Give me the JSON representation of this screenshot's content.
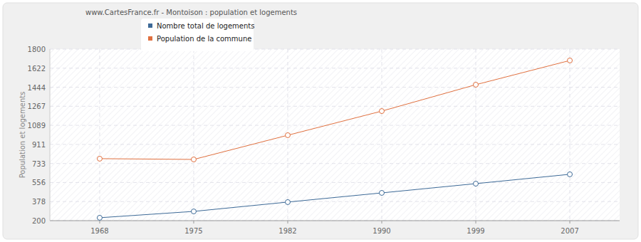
{
  "chart_data": {
    "type": "line",
    "title": "www.CartesFrance.fr - Montoison : population et logements",
    "y_label": "Population et logements",
    "categories": [
      "1968",
      "1975",
      "1982",
      "1990",
      "1999",
      "2007"
    ],
    "series": [
      {
        "name": "Nombre total de logements",
        "color": "#3d6a97",
        "marker": "circle",
        "values": [
          227,
          286,
          373,
          459,
          545,
          632
        ]
      },
      {
        "name": "Population de la commune",
        "color": "#e0703f",
        "marker": "circle",
        "values": [
          778,
          771,
          997,
          1222,
          1468,
          1694
        ]
      }
    ],
    "ylim": [
      200,
      1800
    ],
    "yticks": [
      200,
      378,
      556,
      733,
      911,
      1089,
      1267,
      1444,
      1622,
      1800
    ],
    "grid": true,
    "legend": "top"
  }
}
